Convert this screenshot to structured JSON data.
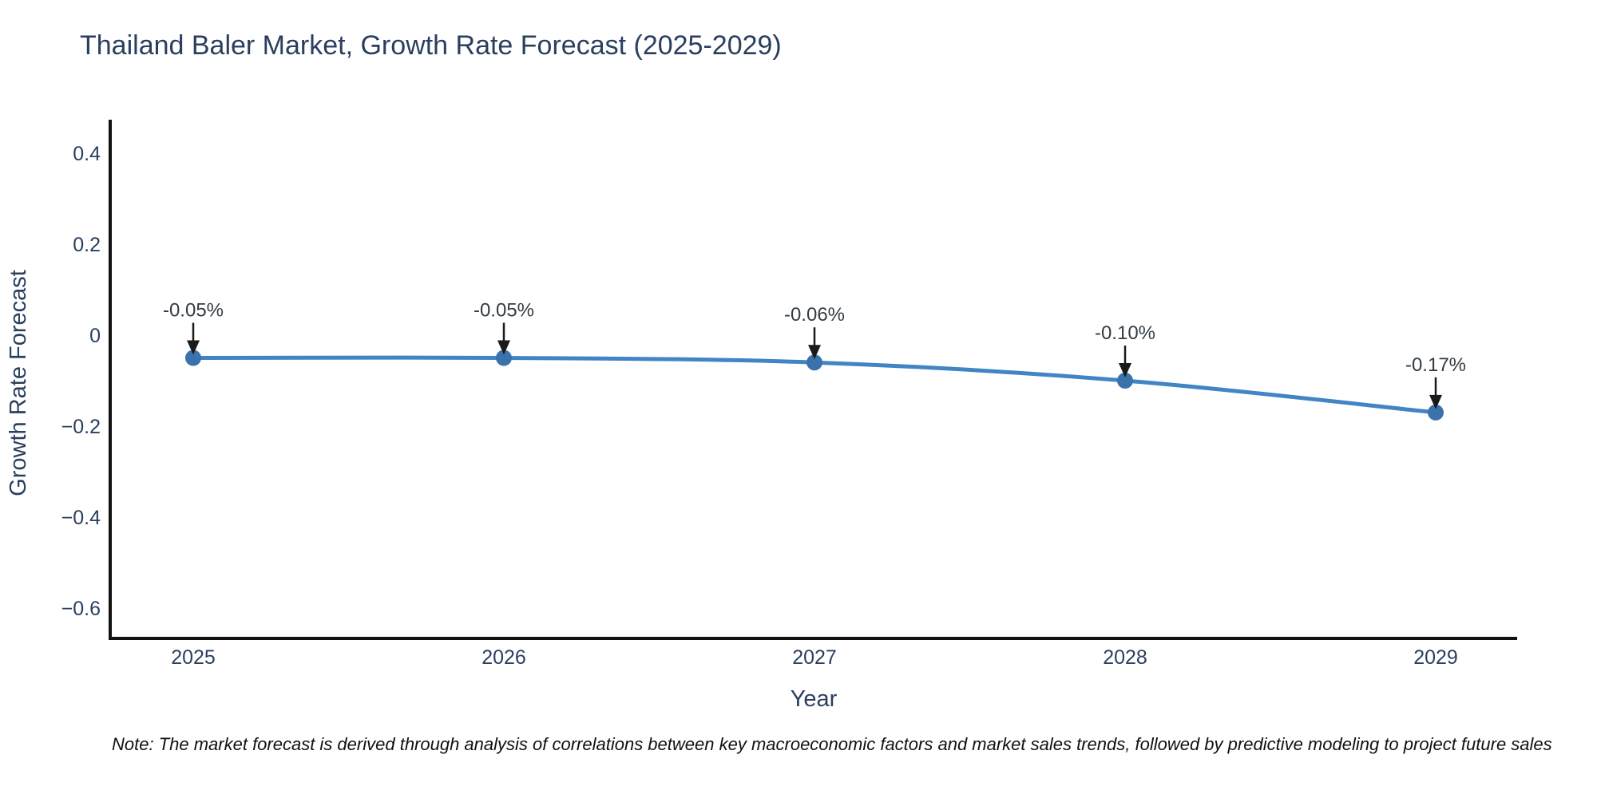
{
  "note": "Note: The market forecast is derived through analysis of correlations between key macroeconomic factors and market sales trends, followed by predictive modeling to project future sales",
  "chart_data": {
    "type": "line",
    "title": "Thailand Baler Market, Growth Rate Forecast (2025-2029)",
    "xlabel": "Year",
    "ylabel": "Growth Rate Forecast",
    "categories": [
      "2025",
      "2026",
      "2027",
      "2028",
      "2029"
    ],
    "series": [
      {
        "name": "Growth Rate Forecast",
        "values": [
          -0.05,
          -0.05,
          -0.06,
          -0.1,
          -0.17
        ],
        "point_labels": [
          "-0.05%",
          "-0.05%",
          "-0.06%",
          "-0.10%",
          "-0.17%"
        ]
      }
    ],
    "y_ticks": [
      0.4,
      0.2,
      0,
      -0.2,
      -0.4,
      -0.6
    ],
    "y_tick_labels": [
      "0.4",
      "0.2",
      "0",
      "−0.2",
      "−0.4",
      "−0.6"
    ],
    "ylim": [
      -0.67,
      0.46
    ],
    "grid": false,
    "legend_position": "none",
    "annotations_have_arrows": true
  },
  "colors": {
    "line": "#4285c4",
    "marker": "#3a72ab",
    "arrow": "#1a1a1a",
    "axis_line": "#111111",
    "title_text": "#2a3f5f",
    "tick_text": "#2a3f5f",
    "annotation_text": "#333b44",
    "note_text": "#111111",
    "background": "#ffffff"
  }
}
